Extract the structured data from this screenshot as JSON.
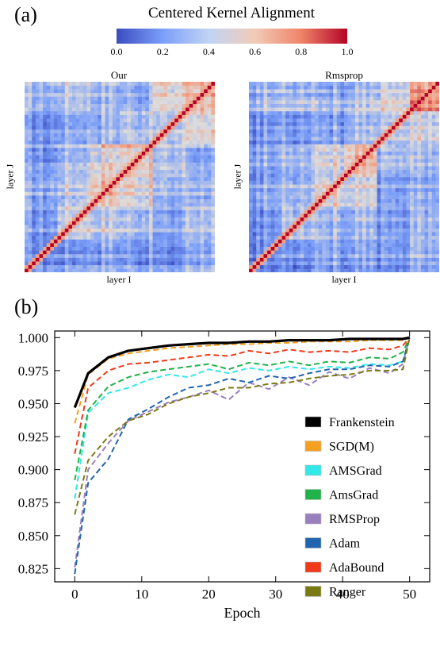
{
  "panel_a": {
    "label": "(a)",
    "colorbar": {
      "title": "Centered Kernel Alignment",
      "ticks": [
        "0.0",
        "0.2",
        "0.4",
        "0.6",
        "0.8",
        "1.0"
      ],
      "stops": [
        "#3b4cc0",
        "#7b9ff9",
        "#c0d4f5",
        "#f2cbb7",
        "#ee8468",
        "#b40426"
      ]
    }
  },
  "chart_data": [
    {
      "type": "heatmap",
      "title": "Our",
      "xlabel": "layer I",
      "ylabel": "layer J",
      "size": 52,
      "range": [
        0,
        1
      ],
      "colormap": "coolwarm",
      "diagonal_value": 1.0,
      "block_pattern": [
        [
          0.2,
          0.25,
          0.3,
          0.25,
          0.2,
          0.35
        ],
        [
          0.25,
          0.5,
          0.45,
          0.4,
          0.3,
          0.45
        ],
        [
          0.3,
          0.45,
          0.65,
          0.55,
          0.35,
          0.4
        ],
        [
          0.25,
          0.4,
          0.55,
          0.6,
          0.4,
          0.35
        ],
        [
          0.2,
          0.3,
          0.35,
          0.4,
          0.4,
          0.55
        ],
        [
          0.35,
          0.45,
          0.4,
          0.35,
          0.55,
          0.7
        ]
      ]
    },
    {
      "type": "heatmap",
      "title": "Rmsprop",
      "xlabel": "layer I",
      "ylabel": "layer J",
      "size": 52,
      "range": [
        0,
        1
      ],
      "colormap": "coolwarm",
      "diagonal_value": 1.0,
      "block_pattern": [
        [
          0.2,
          0.25,
          0.3,
          0.25,
          0.25,
          0.35
        ],
        [
          0.25,
          0.45,
          0.4,
          0.35,
          0.3,
          0.4
        ],
        [
          0.3,
          0.4,
          0.55,
          0.45,
          0.3,
          0.35
        ],
        [
          0.25,
          0.35,
          0.45,
          0.55,
          0.35,
          0.35
        ],
        [
          0.25,
          0.3,
          0.3,
          0.35,
          0.45,
          0.5
        ],
        [
          0.35,
          0.4,
          0.35,
          0.35,
          0.5,
          0.75
        ]
      ]
    },
    {
      "type": "line",
      "panel_label": "(b)",
      "xlabel": "Epoch",
      "ylabel": "",
      "xlim": [
        -3,
        53
      ],
      "ylim": [
        0.815,
        1.005
      ],
      "xticks": [
        "0",
        "10",
        "20",
        "30",
        "40",
        "50"
      ],
      "yticks": [
        "0.825",
        "0.850",
        "0.875",
        "0.900",
        "0.925",
        "0.950",
        "0.975",
        "1.000"
      ],
      "legend_position": "center-right",
      "x": [
        0,
        2,
        5,
        8,
        11,
        14,
        17,
        20,
        23,
        26,
        29,
        32,
        35,
        38,
        41,
        44,
        47,
        49,
        50
      ],
      "series": [
        {
          "name": "Frankenstein",
          "color": "#000000",
          "style": "solid",
          "values": [
            0.947,
            0.973,
            0.985,
            0.99,
            0.992,
            0.994,
            0.995,
            0.996,
            0.996,
            0.997,
            0.997,
            0.998,
            0.998,
            0.998,
            0.999,
            0.999,
            0.999,
            0.999,
            1.0
          ]
        },
        {
          "name": "SGD(M)",
          "color": "#f5a020",
          "style": "dashed",
          "values": [
            0.935,
            0.972,
            0.984,
            0.988,
            0.99,
            0.992,
            0.993,
            0.994,
            0.995,
            0.995,
            0.996,
            0.996,
            0.997,
            0.997,
            0.997,
            0.998,
            0.998,
            0.998,
            1.0
          ]
        },
        {
          "name": "AMSGrad",
          "color": "#33e8e8",
          "style": "dashed",
          "values": [
            0.878,
            0.943,
            0.958,
            0.962,
            0.968,
            0.972,
            0.97,
            0.976,
            0.973,
            0.977,
            0.975,
            0.978,
            0.976,
            0.978,
            0.977,
            0.98,
            0.979,
            0.982,
            1.0
          ]
        },
        {
          "name": "AmsGrad",
          "color": "#1fb34a",
          "style": "dashed",
          "values": [
            0.892,
            0.945,
            0.963,
            0.97,
            0.974,
            0.976,
            0.978,
            0.98,
            0.976,
            0.981,
            0.979,
            0.982,
            0.979,
            0.982,
            0.981,
            0.985,
            0.984,
            0.989,
            1.0
          ]
        },
        {
          "name": "RMSProp",
          "color": "#9a7fbf",
          "style": "dashed",
          "values": [
            0.826,
            0.9,
            0.92,
            0.937,
            0.944,
            0.951,
            0.955,
            0.96,
            0.953,
            0.966,
            0.961,
            0.97,
            0.964,
            0.974,
            0.969,
            0.977,
            0.973,
            0.98,
            1.0
          ]
        },
        {
          "name": "Adam",
          "color": "#2164b0",
          "style": "dashed",
          "values": [
            0.821,
            0.89,
            0.908,
            0.938,
            0.946,
            0.955,
            0.962,
            0.964,
            0.969,
            0.966,
            0.971,
            0.969,
            0.973,
            0.976,
            0.976,
            0.979,
            0.978,
            0.982,
            1.0
          ]
        },
        {
          "name": "AdaBound",
          "color": "#ef3a1c",
          "style": "dashed",
          "values": [
            0.912,
            0.962,
            0.975,
            0.98,
            0.981,
            0.983,
            0.985,
            0.987,
            0.986,
            0.99,
            0.988,
            0.991,
            0.989,
            0.99,
            0.989,
            0.992,
            0.991,
            0.994,
            1.0
          ]
        },
        {
          "name": "Ranger",
          "color": "#7a7a14",
          "style": "dashed",
          "values": [
            0.866,
            0.907,
            0.925,
            0.937,
            0.942,
            0.95,
            0.955,
            0.958,
            0.962,
            0.962,
            0.965,
            0.966,
            0.969,
            0.971,
            0.972,
            0.975,
            0.975,
            0.976,
            1.0
          ]
        }
      ]
    }
  ]
}
